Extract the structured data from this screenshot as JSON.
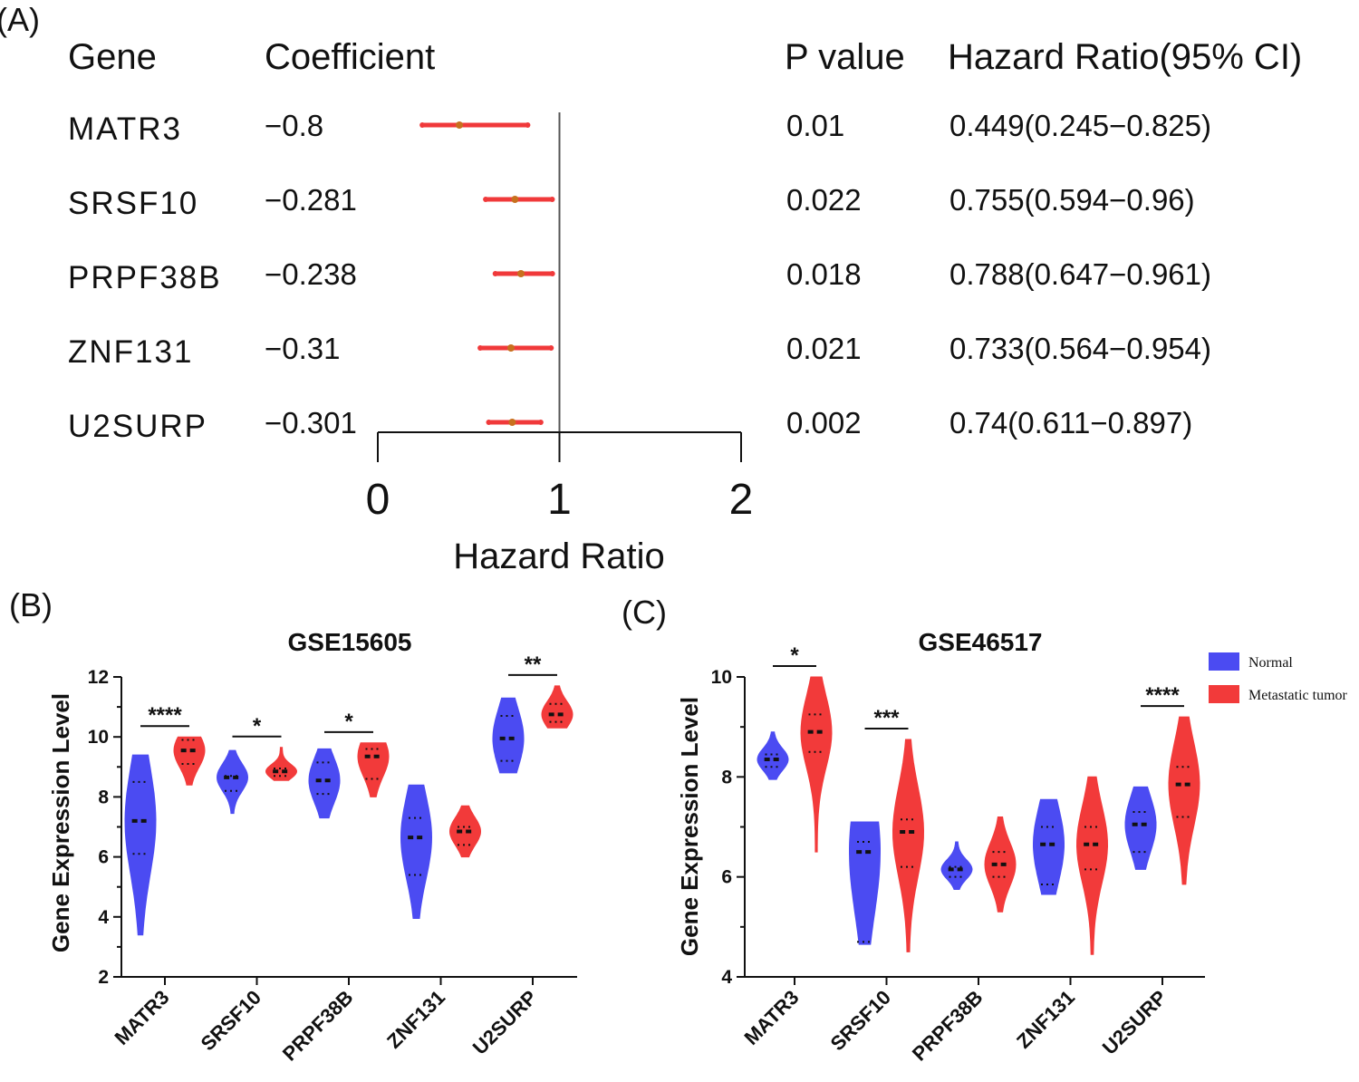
{
  "chart_data": [
    {
      "type": "forest",
      "panel_label": "(A)",
      "headers": {
        "gene": "Gene",
        "coefficient": "Coefficient",
        "p_value": "P value",
        "hazard_ratio": "Hazard Ratio(95% CI)"
      },
      "rows": [
        {
          "gene": "MATR3",
          "coefficient": "−0.8",
          "p_value": "0.01",
          "hr_text": "0.449(0.245−0.825)",
          "hr": 0.449,
          "lo": 0.245,
          "hi": 0.825
        },
        {
          "gene": "SRSF10",
          "coefficient": "−0.281",
          "p_value": "0.022",
          "hr_text": "0.755(0.594−0.96)",
          "hr": 0.755,
          "lo": 0.594,
          "hi": 0.96
        },
        {
          "gene": "PRPF38B",
          "coefficient": "−0.238",
          "p_value": "0.018",
          "hr_text": "0.788(0.647−0.961)",
          "hr": 0.788,
          "lo": 0.647,
          "hi": 0.961
        },
        {
          "gene": "ZNF131",
          "coefficient": "−0.31",
          "p_value": "0.021",
          "hr_text": "0.733(0.564−0.954)",
          "hr": 0.733,
          "lo": 0.564,
          "hi": 0.954
        },
        {
          "gene": "U2SURP",
          "coefficient": "−0.301",
          "p_value": "0.002",
          "hr_text": "0.74(0.611−0.897)",
          "hr": 0.74,
          "lo": 0.611,
          "hi": 0.897
        }
      ],
      "xlabel": "Hazard Ratio",
      "xticks": [
        "0",
        "1",
        "2"
      ],
      "xlim": [
        0,
        2
      ],
      "reference": 1,
      "colors": {
        "ci": "#f0393a",
        "point": "#c8701e",
        "axis": "#111111"
      }
    },
    {
      "type": "violin",
      "panel_label": "(B)",
      "title": "GSE15605",
      "ylabel": "Gene Expression Level",
      "ylim": [
        2,
        12
      ],
      "yticks": [
        "2",
        "4",
        "6",
        "8",
        "10",
        "12"
      ],
      "categories": [
        "MATR3",
        "SRSF10",
        "PRPF38B",
        "ZNF131",
        "U2SURP"
      ],
      "significance": [
        "****",
        "*",
        "*",
        "",
        "**"
      ],
      "series": [
        {
          "name": "Normal",
          "color": "#4b4bf2",
          "groups": [
            {
              "min": 3.4,
              "max": 9.4,
              "median": 7.2,
              "q1": 6.1,
              "q3": 8.5
            },
            {
              "min": 7.45,
              "max": 9.55,
              "median": 8.65,
              "q1": 8.2,
              "q3": 8.7
            },
            {
              "min": 7.3,
              "max": 9.6,
              "median": 8.55,
              "q1": 8.1,
              "q3": 9.15
            },
            {
              "min": 3.95,
              "max": 8.4,
              "median": 6.65,
              "q1": 5.4,
              "q3": 7.3
            },
            {
              "min": 8.8,
              "max": 11.3,
              "median": 9.95,
              "q1": 9.2,
              "q3": 10.7
            }
          ]
        },
        {
          "name": "Metastatic tumor",
          "color": "#f23a3a",
          "groups": [
            {
              "min": 8.4,
              "max": 10.0,
              "median": 9.55,
              "q1": 9.1,
              "q3": 9.9
            },
            {
              "min": 8.55,
              "max": 9.65,
              "median": 8.85,
              "q1": 8.7,
              "q3": 8.95
            },
            {
              "min": 8.0,
              "max": 9.8,
              "median": 9.35,
              "q1": 8.6,
              "q3": 9.6
            },
            {
              "min": 6.0,
              "max": 7.7,
              "median": 6.85,
              "q1": 6.4,
              "q3": 7.0
            },
            {
              "min": 10.3,
              "max": 11.7,
              "median": 10.75,
              "q1": 10.5,
              "q3": 11.1
            }
          ]
        }
      ]
    },
    {
      "type": "violin",
      "panel_label": "(C)",
      "title": "GSE46517",
      "ylabel": "Gene Expression Level",
      "ylim": [
        4,
        10
      ],
      "yticks": [
        "4",
        "6",
        "8",
        "10"
      ],
      "categories": [
        "MATR3",
        "SRSF10",
        "PRPF38B",
        "ZNF131",
        "U2SURP"
      ],
      "significance": [
        "*",
        "***",
        "",
        "",
        "****"
      ],
      "legend": [
        "Normal",
        "Metastatic tumor"
      ],
      "series": [
        {
          "name": "Normal",
          "color": "#4b4bf2",
          "groups": [
            {
              "min": 7.95,
              "max": 8.9,
              "median": 8.35,
              "q1": 8.2,
              "q3": 8.45
            },
            {
              "min": 4.65,
              "max": 7.1,
              "median": 6.5,
              "q1": 4.7,
              "q3": 6.7
            },
            {
              "min": 5.75,
              "max": 6.7,
              "median": 6.15,
              "q1": 6.0,
              "q3": 6.2
            },
            {
              "min": 5.65,
              "max": 7.55,
              "median": 6.65,
              "q1": 5.85,
              "q3": 7.0
            },
            {
              "min": 6.15,
              "max": 7.8,
              "median": 7.05,
              "q1": 6.5,
              "q3": 7.3
            }
          ]
        },
        {
          "name": "Metastatic tumor",
          "color": "#f23a3a",
          "groups": [
            {
              "min": 6.5,
              "max": 10.0,
              "median": 8.9,
              "q1": 8.5,
              "q3": 9.25
            },
            {
              "min": 4.5,
              "max": 8.75,
              "median": 6.9,
              "q1": 6.2,
              "q3": 7.15
            },
            {
              "min": 5.3,
              "max": 7.2,
              "median": 6.25,
              "q1": 6.0,
              "q3": 6.5
            },
            {
              "min": 4.45,
              "max": 8.0,
              "median": 6.65,
              "q1": 6.15,
              "q3": 7.0
            },
            {
              "min": 5.85,
              "max": 9.2,
              "median": 7.85,
              "q1": 7.2,
              "q3": 8.2
            }
          ]
        }
      ]
    }
  ]
}
